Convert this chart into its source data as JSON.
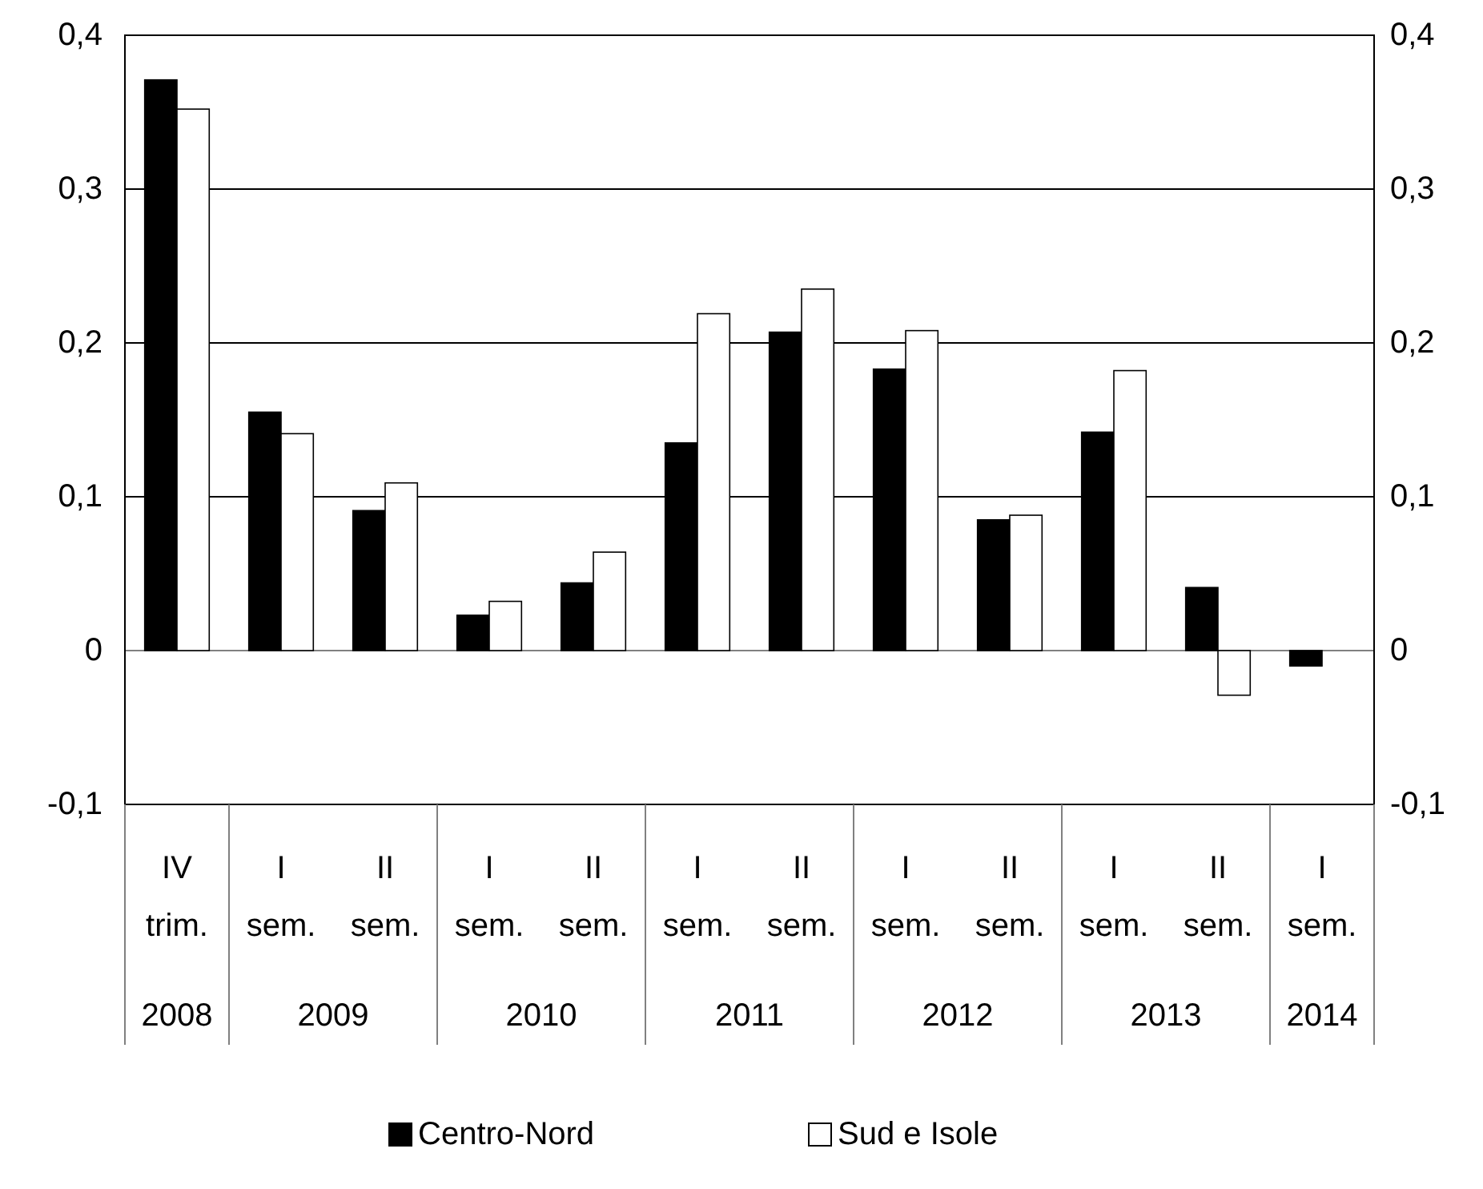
{
  "chart_data": {
    "type": "bar",
    "categories": [
      "IV trim.",
      "I sem.",
      "II sem.",
      "I sem.",
      "II sem.",
      "I sem.",
      "II sem.",
      "I sem.",
      "II sem.",
      "I sem.",
      "II sem.",
      "I sem."
    ],
    "series": [
      {
        "name": "Centro-Nord",
        "color": "#000000",
        "values": [
          0.371,
          0.155,
          0.091,
          0.023,
          0.044,
          0.135,
          0.207,
          0.183,
          0.085,
          0.142,
          0.041,
          -0.01
        ]
      },
      {
        "name": "Sud e Isole",
        "color": "#ffffff",
        "values": [
          0.352,
          0.141,
          0.109,
          0.032,
          0.064,
          0.219,
          0.235,
          0.208,
          0.088,
          0.182,
          -0.029,
          null
        ]
      }
    ],
    "annotations": [
      "2008",
      "2009",
      "2010",
      "2011",
      "2012",
      "2013",
      "2014"
    ],
    "ylim": [
      -0.1,
      0.4
    ],
    "yticks": [
      {
        "value": -0.1,
        "label": "-0,1"
      },
      {
        "value": 0,
        "label": "0"
      },
      {
        "value": 0.1,
        "label": "0,1"
      },
      {
        "value": 0.2,
        "label": "0,2"
      },
      {
        "value": 0.3,
        "label": "0,3"
      },
      {
        "value": 0.4,
        "label": "0,4"
      }
    ],
    "y2lim": [
      -0.1,
      0.4
    ],
    "y2ticks": [
      {
        "value": -0.1,
        "label": "-0,1"
      },
      {
        "value": 0,
        "label": "0"
      },
      {
        "value": 0.1,
        "label": "0,1"
      },
      {
        "value": 0.2,
        "label": "0,2"
      },
      {
        "value": 0.3,
        "label": "0,3"
      },
      {
        "value": 0.4,
        "label": "0,4"
      }
    ],
    "grid": "y",
    "legend": "bottom"
  }
}
